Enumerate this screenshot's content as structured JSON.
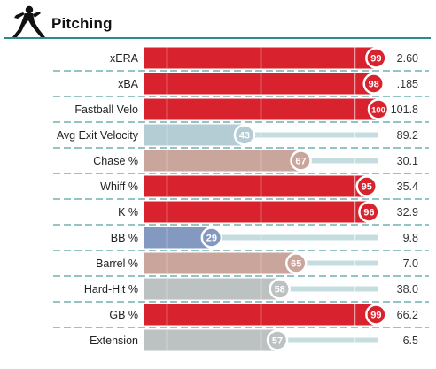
{
  "section": {
    "title": "Pitching",
    "icon": "pitcher-icon"
  },
  "chart_data": {
    "type": "bar",
    "orientation": "horizontal",
    "title": "Pitching",
    "xlim": [
      0,
      100
    ],
    "categories": [
      "xERA",
      "xBA",
      "Fastball Velo",
      "Avg Exit Velocity",
      "Chase %",
      "Whiff %",
      "K %",
      "BB %",
      "Barrel %",
      "Hard-Hit %",
      "GB %",
      "Extension"
    ],
    "percentiles": [
      99,
      98,
      100,
      43,
      67,
      95,
      96,
      29,
      65,
      58,
      99,
      57
    ],
    "stat_values": [
      "2.60",
      ".185",
      "101.8",
      "89.2",
      "30.1",
      "35.4",
      "32.9",
      "9.8",
      "7.0",
      "38.0",
      "66.2",
      "6.5"
    ],
    "colors": [
      "#d8222d",
      "#d8222d",
      "#d8222d",
      "#b4cdd4",
      "#c9a59c",
      "#d8222d",
      "#d8222d",
      "#8499c0",
      "#c9a59c",
      "#bcc2c2",
      "#d8222d",
      "#bcc2c2"
    ],
    "track_color": "#c6dde0",
    "grid": true
  }
}
